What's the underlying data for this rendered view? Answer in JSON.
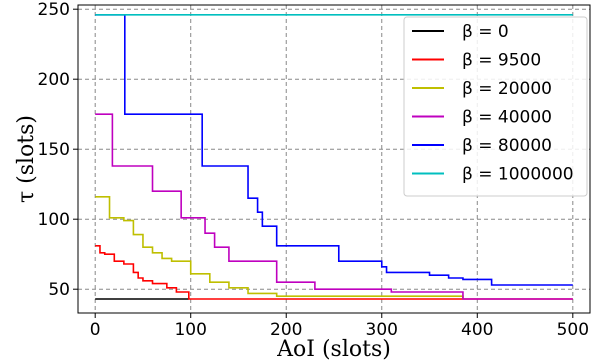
{
  "chart_data": {
    "type": "line",
    "xlabel": "AoI (slots)",
    "ylabel": "τ (slots)",
    "xlim": [
      -18,
      518
    ],
    "ylim": [
      33,
      253
    ],
    "xticks": [
      0,
      100,
      200,
      300,
      400,
      500
    ],
    "yticks": [
      50,
      100,
      150,
      200,
      250
    ],
    "grid": true,
    "grid_style": "dashed",
    "legend_position": "top-right",
    "step_style": "post",
    "series": [
      {
        "name": "β = 0",
        "color": "#000000",
        "x": [
          0,
          98
        ],
        "y": [
          43,
          43
        ]
      },
      {
        "name": "β = 9500",
        "color": "#ff0000",
        "x": [
          0,
          5,
          10,
          20,
          30,
          40,
          45,
          50,
          60,
          75,
          85,
          98,
          500
        ],
        "y": [
          81,
          76,
          75,
          70,
          68,
          62,
          58,
          56,
          54,
          51,
          48,
          43,
          43
        ]
      },
      {
        "name": "β = 20000",
        "color": "#bfbf00",
        "x": [
          0,
          15,
          30,
          40,
          50,
          60,
          70,
          80,
          100,
          120,
          140,
          160,
          190,
          385
        ],
        "y": [
          116,
          101,
          99,
          89,
          80,
          76,
          72,
          70,
          61,
          55,
          51,
          47,
          45,
          43
        ]
      },
      {
        "name": "β = 40000",
        "color": "#bf00bf",
        "x": [
          0,
          18,
          30,
          60,
          80,
          90,
          100,
          115,
          125,
          140,
          190,
          230,
          310,
          385,
          500
        ],
        "y": [
          175,
          138,
          138,
          120,
          120,
          101,
          101,
          90,
          80,
          70,
          55,
          50,
          48,
          43,
          43
        ]
      },
      {
        "name": "β = 80000",
        "color": "#0000ff",
        "x": [
          0,
          31,
          112,
          140,
          160,
          170,
          175,
          190,
          255,
          300,
          305,
          330,
          350,
          370,
          385,
          415,
          500
        ],
        "y": [
          246,
          175,
          138,
          138,
          115,
          105,
          95,
          81,
          70,
          66,
          62,
          62,
          60,
          58,
          57,
          53,
          53
        ]
      },
      {
        "name": "β = 1000000",
        "color": "#00bfbf",
        "x": [
          0,
          500
        ],
        "y": [
          246,
          246
        ]
      }
    ]
  }
}
